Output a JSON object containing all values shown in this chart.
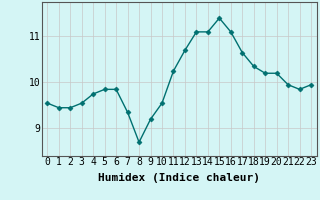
{
  "x": [
    0,
    1,
    2,
    3,
    4,
    5,
    6,
    7,
    8,
    9,
    10,
    11,
    12,
    13,
    14,
    15,
    16,
    17,
    18,
    19,
    20,
    21,
    22,
    23
  ],
  "y": [
    9.55,
    9.45,
    9.45,
    9.55,
    9.75,
    9.85,
    9.85,
    9.35,
    8.7,
    9.2,
    9.55,
    10.25,
    10.7,
    11.1,
    11.1,
    11.4,
    11.1,
    10.65,
    10.35,
    10.2,
    10.2,
    9.95,
    9.85,
    9.95
  ],
  "line_color": "#007070",
  "marker": "D",
  "marker_size": 2.5,
  "bg_color": "#d4f5f5",
  "grid_color": "#c8c8c8",
  "xlabel": "Humidex (Indice chaleur)",
  "xlabel_fontsize": 8,
  "yticks": [
    9,
    10,
    11
  ],
  "xtick_labels": [
    "0",
    "1",
    "2",
    "3",
    "4",
    "5",
    "6",
    "7",
    "8",
    "9",
    "10",
    "11",
    "12",
    "13",
    "14",
    "15",
    "16",
    "17",
    "18",
    "19",
    "20",
    "21",
    "22",
    "23"
  ],
  "ylim": [
    8.4,
    11.75
  ],
  "xlim": [
    -0.5,
    23.5
  ],
  "tick_fontsize": 7,
  "line_width": 1.0,
  "spine_color": "#555555"
}
